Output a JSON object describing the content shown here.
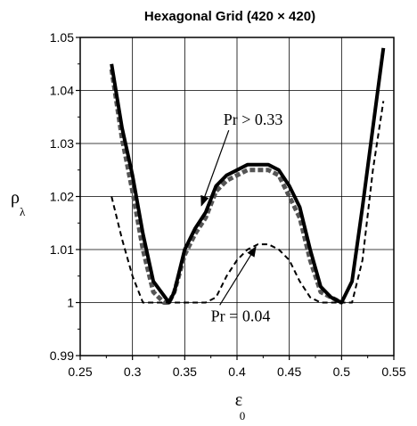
{
  "chart_data": {
    "type": "line",
    "title": "Hexagonal Grid (420 × 420)",
    "xlabel": "ε",
    "xlabel_sub": "0",
    "ylabel": "ρ",
    "ylabel_sub": "λ",
    "xlim": [
      0.25,
      0.55
    ],
    "ylim": [
      0.99,
      1.05
    ],
    "xticks": [
      0.25,
      0.3,
      0.35,
      0.4,
      0.45,
      0.5,
      0.55
    ],
    "xtick_labels": [
      "0.25",
      "0.3",
      "0.35",
      "0.4",
      "0.45",
      "0.5",
      "0.55"
    ],
    "yticks": [
      0.99,
      1,
      1.01,
      1.02,
      1.03,
      1.04,
      1.05
    ],
    "ytick_labels": [
      "0.99",
      "1",
      "1.01",
      "1.02",
      "1.03",
      "1.04",
      "1.05"
    ],
    "grid": true,
    "annotations": [
      {
        "text": "Pr > 0.33",
        "label_at": [
          0.387,
          1.0335
        ],
        "arrow_to": [
          0.366,
          1.0183
        ]
      },
      {
        "text": "Pr = 0.04",
        "label_at": [
          0.375,
          0.9965
        ],
        "arrow_to": [
          0.418,
          1.0105
        ]
      }
    ],
    "series": [
      {
        "style": "solid-thick",
        "color": "#000000",
        "x": [
          0.28,
          0.29,
          0.3,
          0.31,
          0.32,
          0.335,
          0.34,
          0.35,
          0.36,
          0.37,
          0.38,
          0.39,
          0.4,
          0.41,
          0.42,
          0.43,
          0.44,
          0.45,
          0.46,
          0.47,
          0.48,
          0.49,
          0.5,
          0.51,
          0.52,
          0.53,
          0.54
        ],
        "y": [
          1.045,
          1.033,
          1.024,
          1.013,
          1.004,
          1.0,
          1.002,
          1.01,
          1.014,
          1.017,
          1.022,
          1.024,
          1.025,
          1.026,
          1.026,
          1.026,
          1.025,
          1.022,
          1.018,
          1.01,
          1.003,
          1.001,
          1.0,
          1.004,
          1.018,
          1.033,
          1.048
        ]
      },
      {
        "style": "dashed-thick",
        "color": "#555555",
        "x": [
          0.28,
          0.29,
          0.3,
          0.31,
          0.32,
          0.33,
          0.335,
          0.34,
          0.35,
          0.36,
          0.37,
          0.38,
          0.39,
          0.4,
          0.41,
          0.42,
          0.43,
          0.44,
          0.45,
          0.46,
          0.47,
          0.48,
          0.49,
          0.5
        ],
        "y": [
          1.044,
          1.031,
          1.021,
          1.01,
          1.002,
          1.0,
          1.0,
          1.002,
          1.009,
          1.013,
          1.016,
          1.021,
          1.023,
          1.024,
          1.025,
          1.025,
          1.025,
          1.024,
          1.02,
          1.016,
          1.008,
          1.002,
          1.001,
          1.0
        ]
      },
      {
        "style": "dashed-thin",
        "color": "#000000",
        "x": [
          0.28,
          0.29,
          0.3,
          0.31,
          0.32,
          0.33,
          0.34,
          0.35,
          0.36,
          0.37,
          0.38,
          0.39,
          0.4,
          0.41,
          0.42,
          0.43,
          0.44,
          0.45,
          0.46,
          0.47,
          0.48,
          0.49,
          0.5,
          0.51,
          0.52,
          0.53,
          0.54
        ],
        "y": [
          1.02,
          1.012,
          1.005,
          1.0,
          1.0,
          1.0,
          1.0,
          1.0,
          1.0,
          1.0,
          1.001,
          1.005,
          1.008,
          1.01,
          1.011,
          1.011,
          1.01,
          1.008,
          1.004,
          1.001,
          1.0,
          1.0,
          1.0,
          1.0,
          1.008,
          1.025,
          1.038
        ]
      }
    ]
  }
}
